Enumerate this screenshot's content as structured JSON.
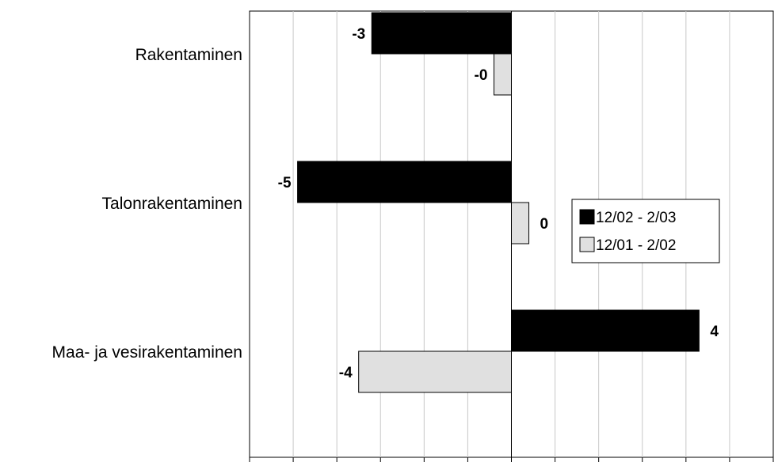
{
  "chart_data": {
    "type": "bar",
    "orientation": "horizontal",
    "categories": [
      "Rakentaminen",
      "Talonrakentaminen",
      "Maa- ja vesirakentaminen"
    ],
    "series": [
      {
        "name": "12/02 - 2/03",
        "color": "#000000",
        "values": [
          -3.2,
          -4.9,
          4.3
        ],
        "labels": [
          "-3",
          "-5",
          "4"
        ]
      },
      {
        "name": "12/01 - 2/02",
        "color": "#e0e0e0",
        "values": [
          -0.4,
          0.4,
          -3.5
        ],
        "labels": [
          "-0",
          "0",
          "-4"
        ]
      }
    ],
    "xlim": [
      -6,
      6
    ],
    "xticks": [
      "-6",
      "-5",
      "-4",
      "-3",
      "-2",
      "-1",
      "0",
      "1",
      "2",
      "3",
      "4",
      "5",
      "6"
    ],
    "grid": true,
    "legend_position": "right"
  }
}
